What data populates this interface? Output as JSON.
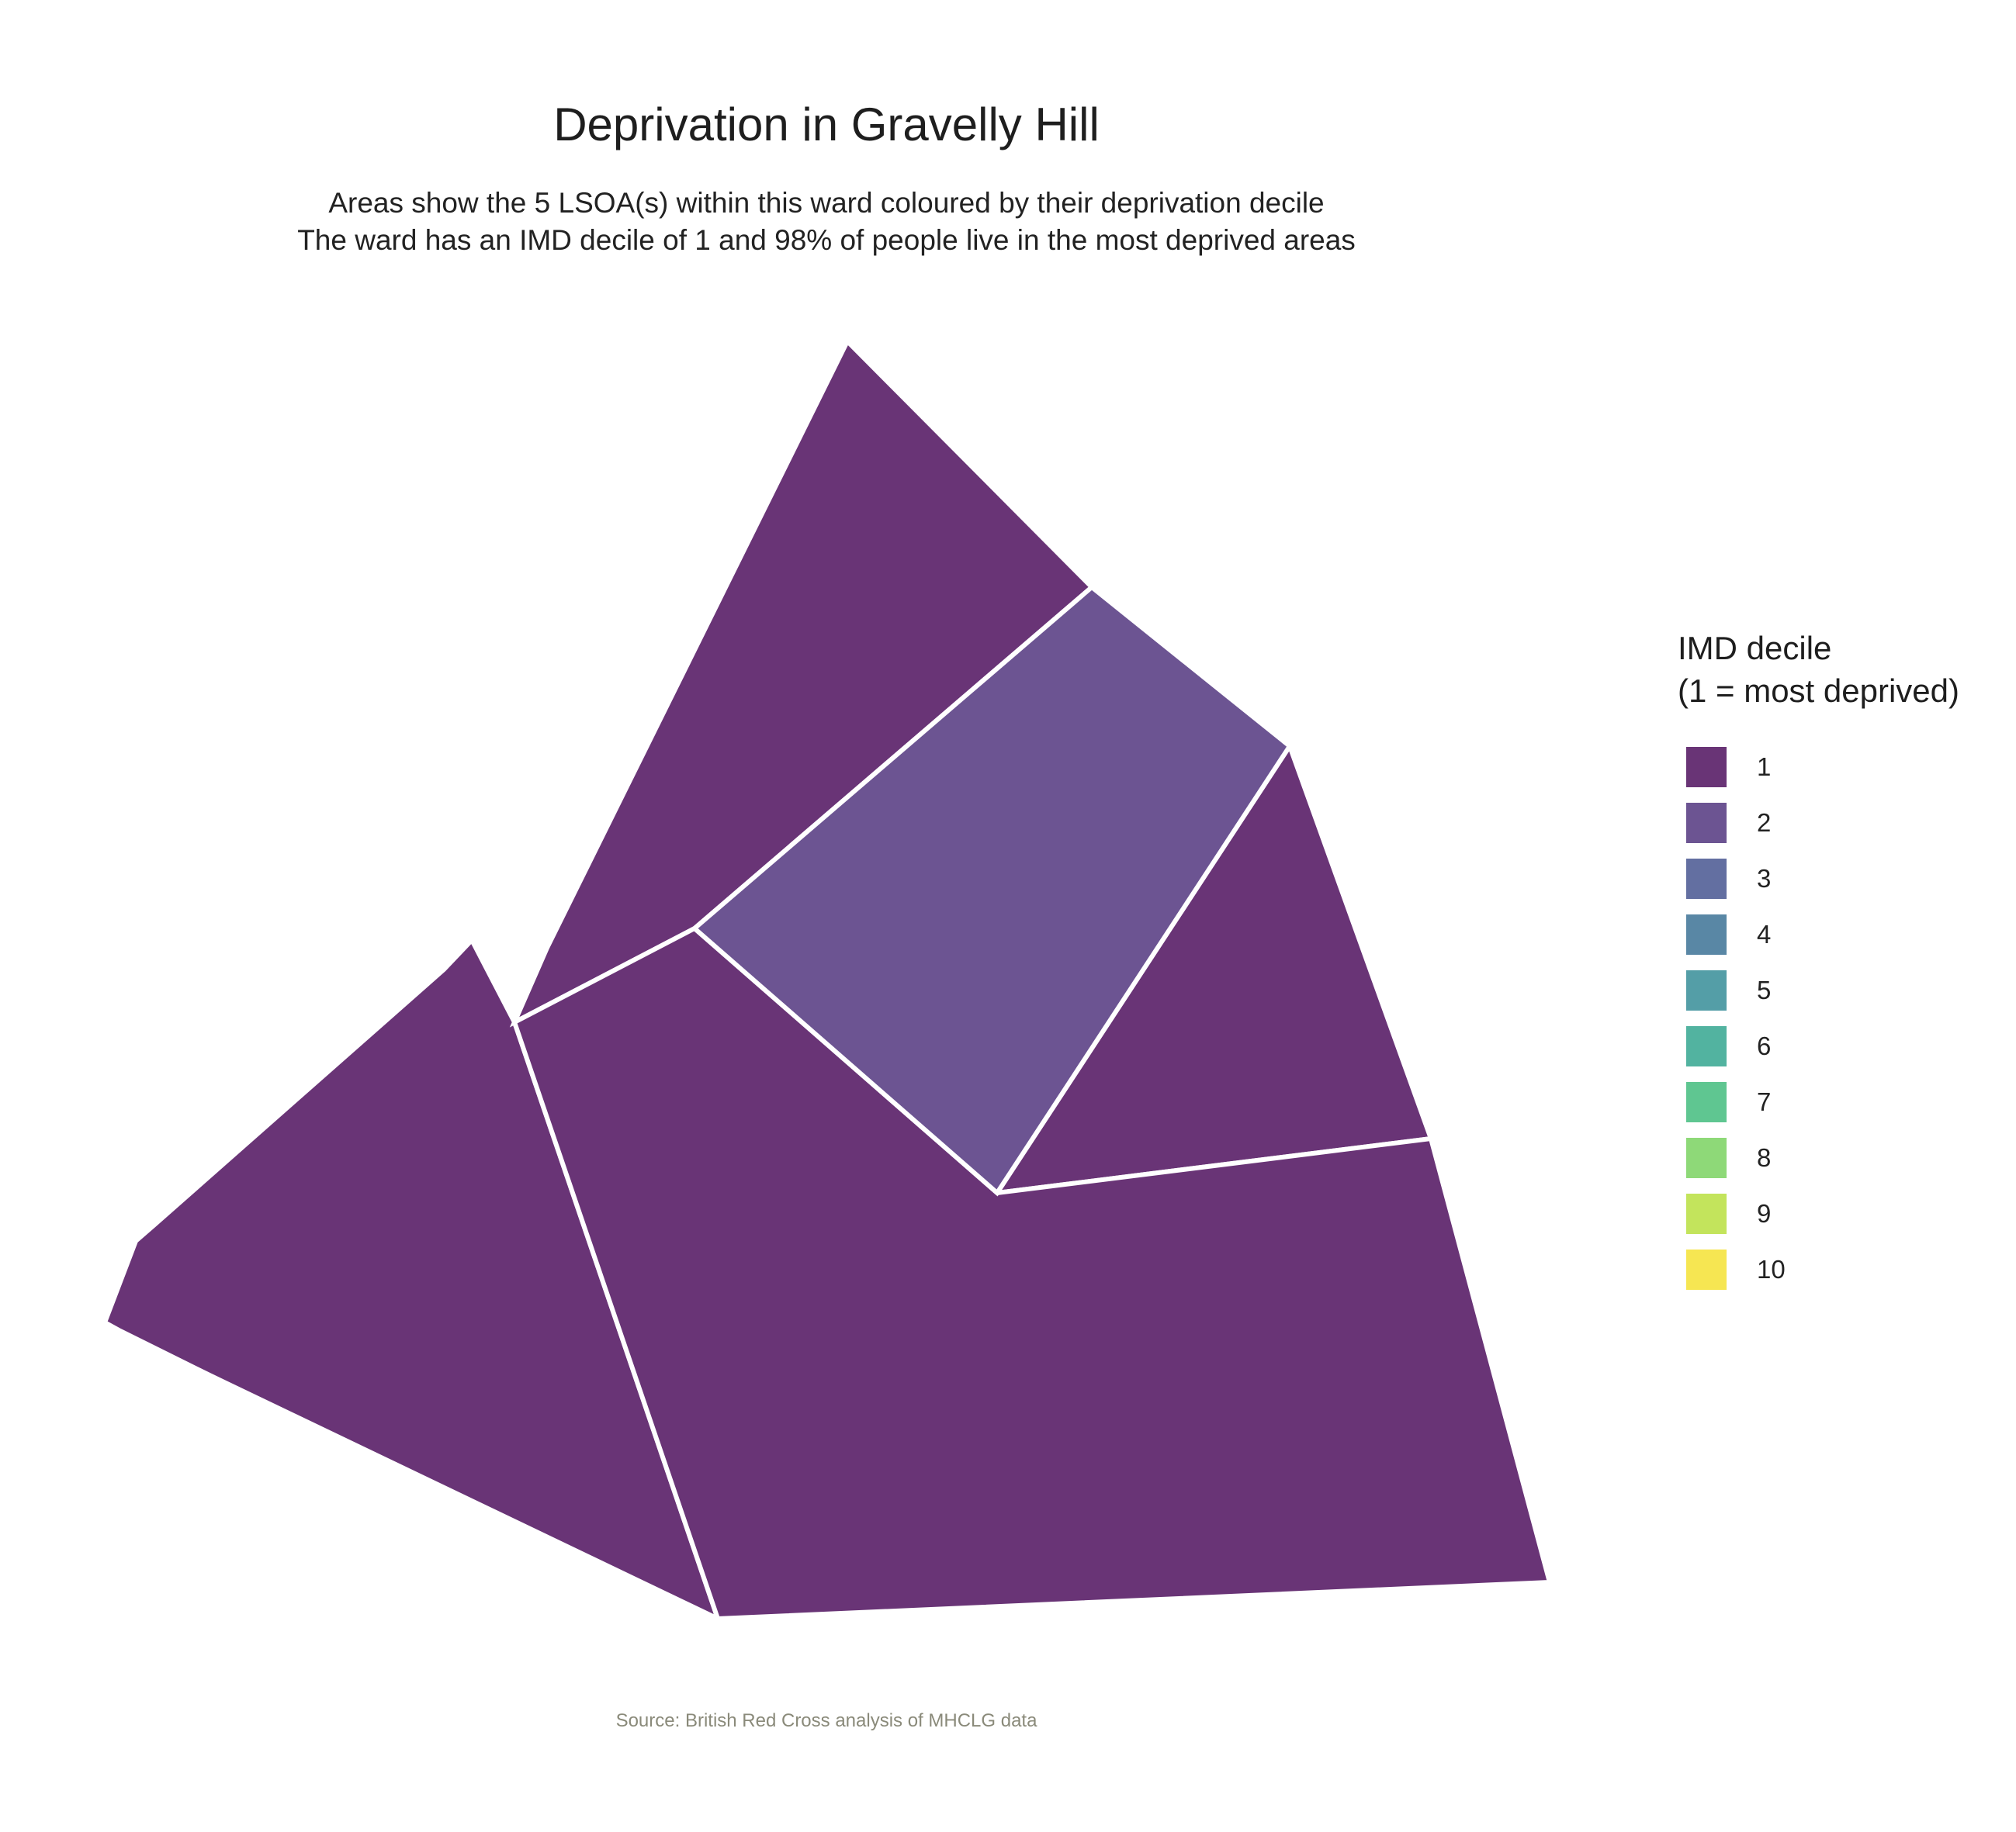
{
  "title": "Deprivation in Gravelly Hill",
  "subtitle": [
    "Areas show the 5 LSOA(s) within this ward coloured by their deprivation decile",
    "The ward has an IMD decile of 1 and 98% of people live in the most deprived areas"
  ],
  "legend": {
    "title_lines": [
      "IMD decile",
      "(1 = most deprived)"
    ],
    "items": [
      {
        "label": "1",
        "color": "#693476"
      },
      {
        "label": "2",
        "color": "#6c5492"
      },
      {
        "label": "3",
        "color": "#636fa1"
      },
      {
        "label": "4",
        "color": "#5987a5"
      },
      {
        "label": "5",
        "color": "#549ea7"
      },
      {
        "label": "6",
        "color": "#52b3a0"
      },
      {
        "label": "7",
        "color": "#5fc691"
      },
      {
        "label": "8",
        "color": "#8ed978"
      },
      {
        "label": "9",
        "color": "#c3e45c"
      },
      {
        "label": "10",
        "color": "#f6e652"
      }
    ]
  },
  "areas": [
    {
      "name": "north",
      "decile": 1
    },
    {
      "name": "centre",
      "decile": 2
    },
    {
      "name": "east",
      "decile": 1
    },
    {
      "name": "west",
      "decile": 1
    },
    {
      "name": "south",
      "decile": 1
    }
  ],
  "caption": "Source: British Red Cross analysis of MHCLG data",
  "colors": {
    "border": "#ffffff",
    "background": "#ffffff"
  }
}
